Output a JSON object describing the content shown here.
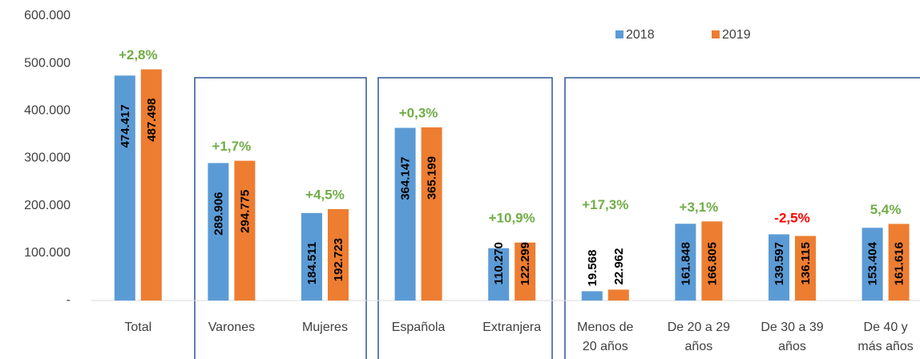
{
  "chart_data": {
    "type": "bar",
    "categories": [
      "Total",
      "Varones",
      "Mujeres",
      "Española",
      "Extranjera",
      "Menos de 20 años",
      "De 20 a 29 años",
      "De 30 a 39 años",
      "De 40 y más años"
    ],
    "series": [
      {
        "name": "2018",
        "color": "#5b9bd5",
        "values": [
          474417,
          289906,
          184511,
          364147,
          110270,
          19568,
          161848,
          139597,
          153404
        ],
        "value_labels": [
          "474.417",
          "289.906",
          "184.511",
          "364.147",
          "110.270",
          "19.568",
          "161.848",
          "139.597",
          "153.404"
        ]
      },
      {
        "name": "2019",
        "color": "#ed7d31",
        "values": [
          487498,
          294775,
          192723,
          365199,
          122299,
          22962,
          166805,
          136115,
          161616
        ],
        "value_labels": [
          "487.498",
          "294.775",
          "192.723",
          "365.199",
          "122.299",
          "22.962",
          "166.805",
          "136.115",
          "161.616"
        ]
      }
    ],
    "annotations": [
      "+2,8%",
      "+1,7%",
      "+4,5%",
      "+0,3%",
      "+10,9%",
      "+17,3%",
      "+3,1%",
      "-2,5%",
      "5,4%"
    ],
    "annotation_colors": [
      "#70ad47",
      "#70ad47",
      "#70ad47",
      "#70ad47",
      "#70ad47",
      "#70ad47",
      "#70ad47",
      "#ff0000",
      "#70ad47"
    ],
    "ylim": [
      0,
      600000
    ],
    "yticks": [
      {
        "value": 0,
        "label": "-"
      },
      {
        "value": 100000,
        "label": "100.000"
      },
      {
        "value": 200000,
        "label": "200.000"
      },
      {
        "value": 300000,
        "label": "300.000"
      },
      {
        "value": 400000,
        "label": "400.000"
      },
      {
        "value": 500000,
        "label": "500.000"
      },
      {
        "value": 600000,
        "label": "600.000"
      }
    ],
    "legend": "top-right"
  }
}
